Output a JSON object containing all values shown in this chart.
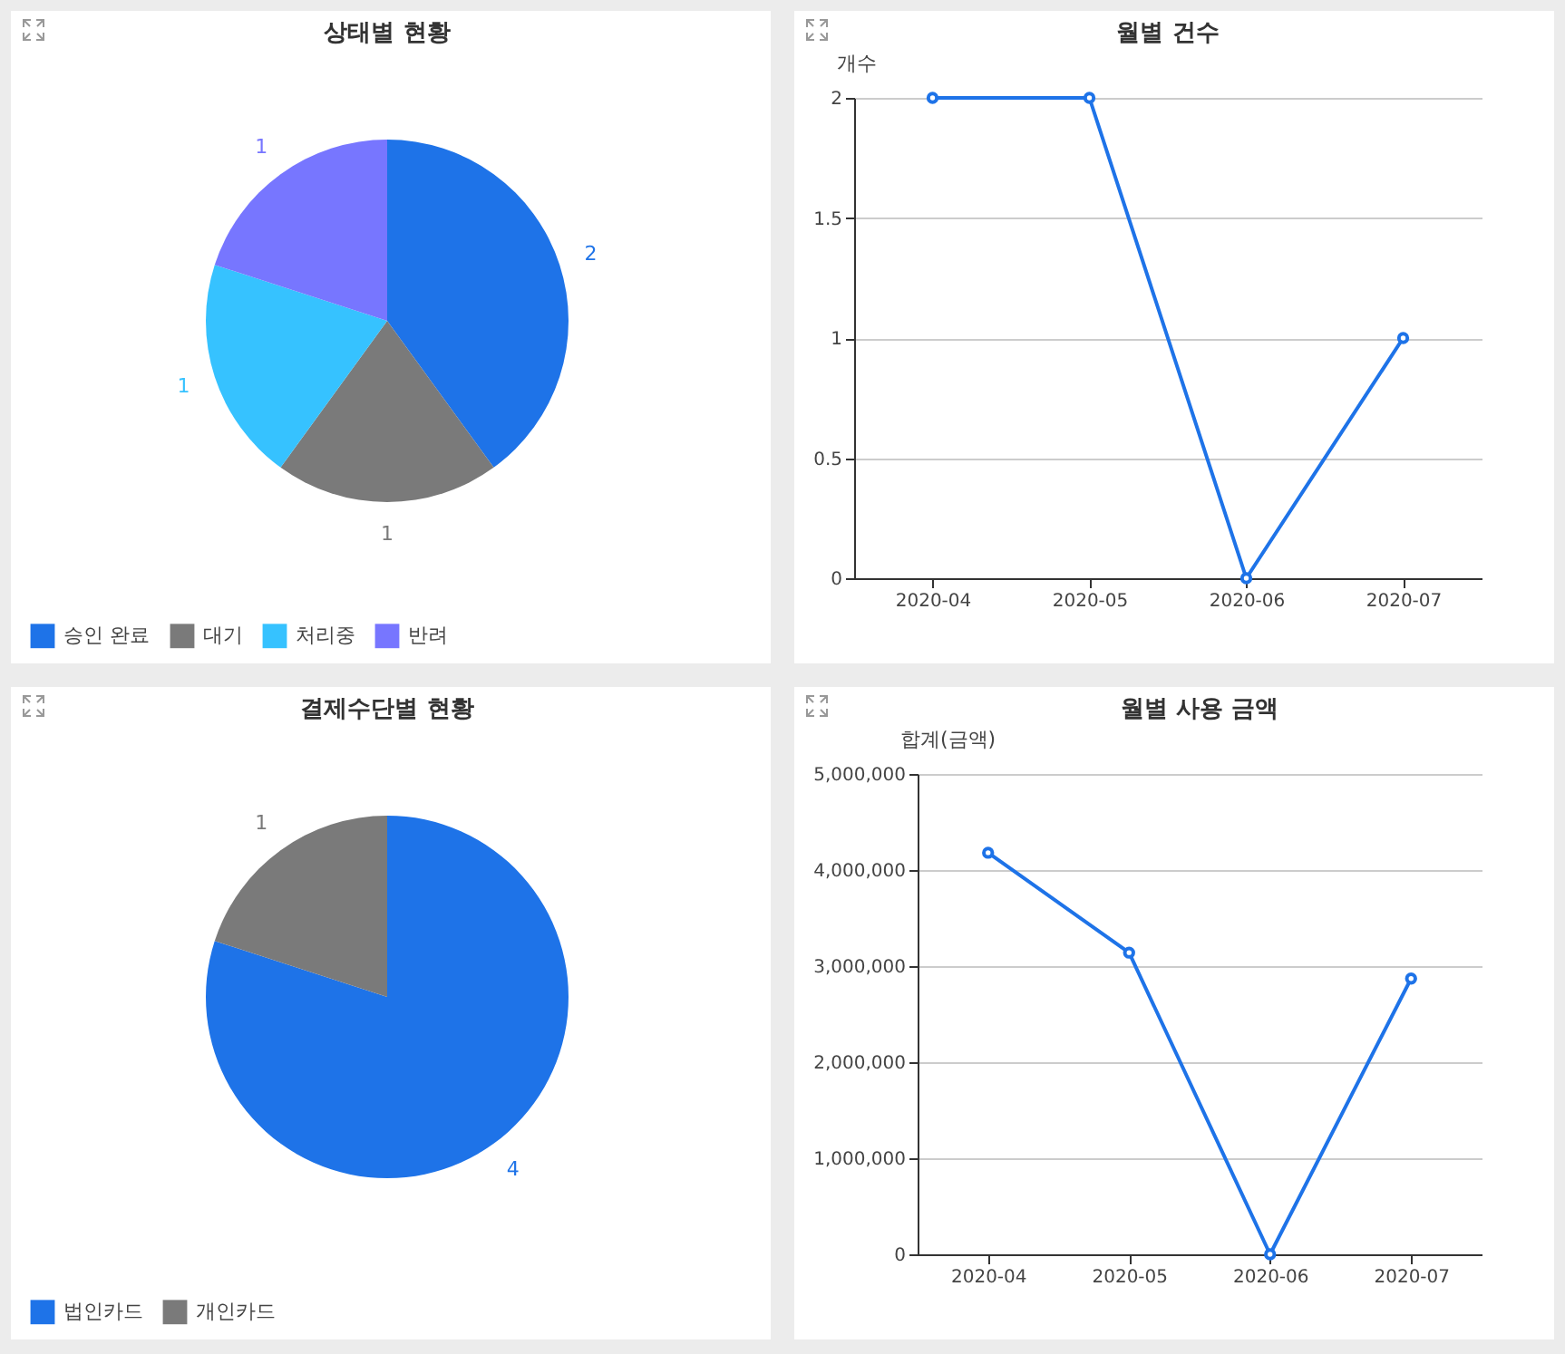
{
  "chart_data": [
    {
      "type": "pie",
      "title": "상태별 현황",
      "categories": [
        "승인 완료",
        "대기",
        "처리중",
        "반려"
      ],
      "values": [
        2,
        1,
        1,
        1
      ],
      "colors": [
        "#1e73e8",
        "#7a7a7a",
        "#36c2ff",
        "#7776ff"
      ],
      "data_labels": true,
      "legend": "bottom"
    },
    {
      "type": "line",
      "title": "월별 건수",
      "ylabel": "개수",
      "categories": [
        "2020-04",
        "2020-05",
        "2020-06",
        "2020-07"
      ],
      "series": [
        {
          "color": "#1e73e8",
          "values": [
            2,
            2,
            0,
            1
          ]
        }
      ],
      "ylim": [
        0,
        2
      ],
      "yticks": [
        0,
        0.5,
        1,
        1.5,
        2
      ],
      "grid": "y",
      "marker": "circle",
      "line_style": "solid"
    },
    {
      "type": "pie",
      "title": "결제수단별 현황",
      "categories": [
        "법인카드",
        "개인카드"
      ],
      "values": [
        4,
        1
      ],
      "colors": [
        "#1e73e8",
        "#7a7a7a"
      ],
      "data_labels": true,
      "legend": "bottom"
    },
    {
      "type": "line",
      "title": "월별 사용 금액",
      "ylabel": "합계(금액)",
      "categories": [
        "2020-04",
        "2020-05",
        "2020-06",
        "2020-07"
      ],
      "series": [
        {
          "color": "#1e73e8",
          "values": [
            4180000,
            3140000,
            0,
            2870000
          ]
        }
      ],
      "ylim": [
        0,
        5000000
      ],
      "yticks": [
        0,
        {
          "value": 1000000,
          "label": "1,000,000"
        },
        {
          "value": 2000000,
          "label": "2,000,000"
        },
        {
          "value": 3000000,
          "label": "3,000,000"
        },
        {
          "value": 4000000,
          "label": "4,000,000"
        },
        {
          "value": 5000000,
          "label": "5,000,000"
        }
      ],
      "grid": "y",
      "marker": "circle",
      "line_style": "solid"
    }
  ]
}
